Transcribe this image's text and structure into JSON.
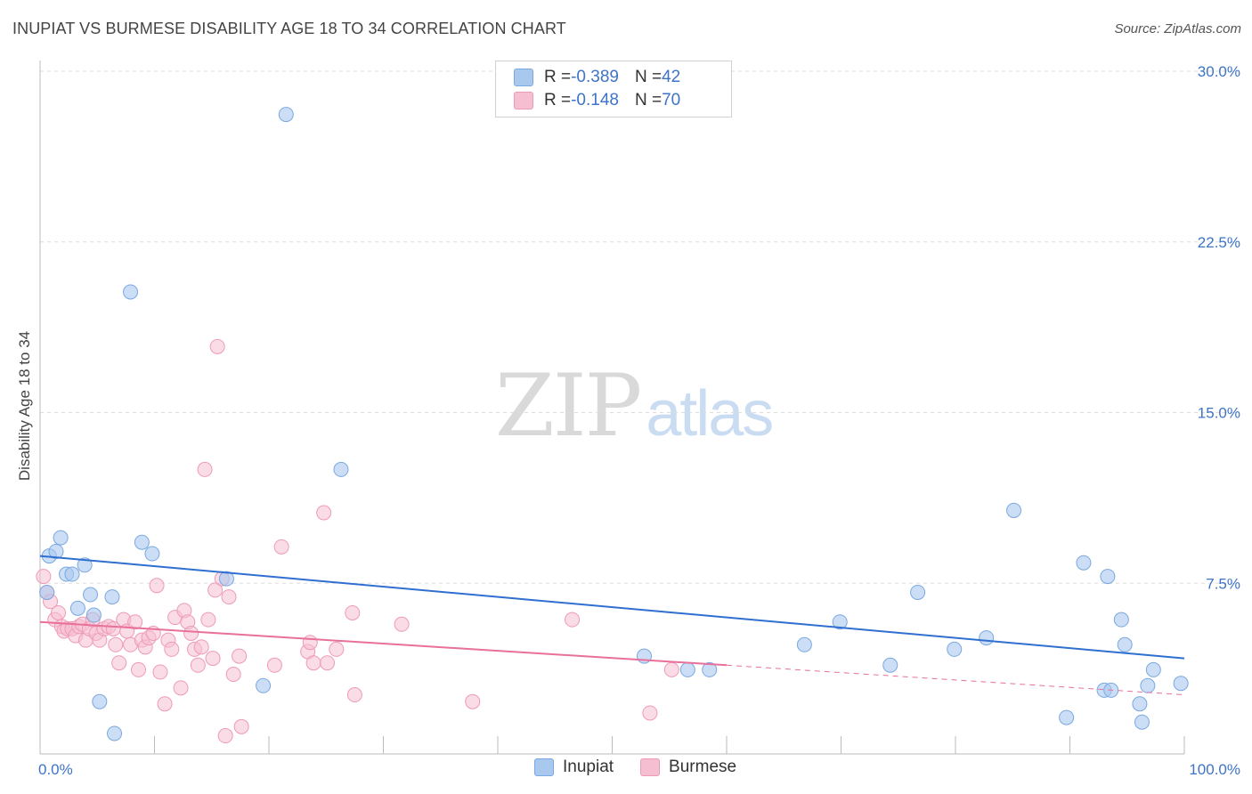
{
  "header": {
    "title": "INUPIAT VS BURMESE DISABILITY AGE 18 TO 34 CORRELATION CHART",
    "source": "Source: ZipAtlas.com"
  },
  "watermark": {
    "zip": "ZIP",
    "atlas": "atlas"
  },
  "legend": {
    "rows": [
      {
        "r_label": "R = ",
        "r_value": "-0.389",
        "n_label": "N = ",
        "n_value": "42"
      },
      {
        "r_label": "R = ",
        "r_value": "-0.148",
        "n_label": "N = ",
        "n_value": "70"
      }
    ]
  },
  "colors": {
    "inupiat_fill": "#a9c8ee",
    "inupiat_stroke": "#7aa8e0",
    "inupiat_line": "#2f6fd0",
    "burmese_fill": "#f6bfd1",
    "burmese_stroke": "#ee9ab6",
    "burmese_line": "#e8709a",
    "tick_text": "#3d74c8",
    "grid": "#dddddd"
  },
  "chart_data": {
    "type": "scatter",
    "title": "INUPIAT VS BURMESE DISABILITY AGE 18 TO 34 CORRELATION CHART",
    "xlabel": "",
    "ylabel": "Disability Age 18 to 34",
    "xlim": [
      0,
      100
    ],
    "ylim": [
      0,
      30
    ],
    "x_tick_labels": [
      "0.0%",
      "100.0%"
    ],
    "y_ticks": [
      7.5,
      15.0,
      22.5,
      30.0
    ],
    "y_tick_labels": [
      "7.5%",
      "15.0%",
      "22.5%",
      "30.0%"
    ],
    "grid": true,
    "legend_position": "top-center",
    "series": [
      {
        "name": "Inupiat",
        "r": -0.389,
        "n": 42,
        "trend": {
          "x0": 0,
          "y0": 8.7,
          "x1": 100,
          "y1": 4.2
        },
        "points": [
          [
            0.6,
            7.1
          ],
          [
            0.8,
            8.7
          ],
          [
            1.4,
            8.9
          ],
          [
            1.8,
            9.5
          ],
          [
            2.3,
            7.9
          ],
          [
            2.8,
            7.9
          ],
          [
            3.3,
            6.4
          ],
          [
            3.9,
            8.3
          ],
          [
            4.4,
            7.0
          ],
          [
            4.7,
            6.1
          ],
          [
            5.2,
            2.3
          ],
          [
            6.3,
            6.9
          ],
          [
            6.5,
            0.9
          ],
          [
            7.9,
            20.3
          ],
          [
            8.9,
            9.3
          ],
          [
            9.8,
            8.8
          ],
          [
            16.3,
            7.7
          ],
          [
            19.5,
            3.0
          ],
          [
            21.5,
            28.1
          ],
          [
            26.3,
            12.5
          ],
          [
            52.8,
            4.3
          ],
          [
            56.6,
            3.7
          ],
          [
            58.5,
            3.7
          ],
          [
            66.8,
            4.8
          ],
          [
            69.9,
            5.8
          ],
          [
            74.3,
            3.9
          ],
          [
            76.7,
            7.1
          ],
          [
            79.9,
            4.6
          ],
          [
            82.7,
            5.1
          ],
          [
            85.1,
            10.7
          ],
          [
            89.7,
            1.6
          ],
          [
            91.2,
            8.4
          ],
          [
            93.0,
            2.8
          ],
          [
            93.3,
            7.8
          ],
          [
            93.6,
            2.8
          ],
          [
            94.5,
            5.9
          ],
          [
            94.8,
            4.8
          ],
          [
            96.1,
            2.2
          ],
          [
            96.3,
            1.4
          ],
          [
            96.8,
            3.0
          ],
          [
            97.3,
            3.7
          ],
          [
            99.7,
            3.1
          ]
        ]
      },
      {
        "name": "Burmese",
        "r": -0.148,
        "n": 70,
        "trend_solid": {
          "x0": 0,
          "y0": 5.8,
          "x1": 60,
          "y1": 3.9
        },
        "trend_dashed": {
          "x0": 60,
          "y0": 3.9,
          "x1": 100,
          "y1": 2.6
        },
        "points": [
          [
            0.3,
            7.8
          ],
          [
            0.6,
            7.1
          ],
          [
            0.9,
            6.7
          ],
          [
            1.3,
            5.9
          ],
          [
            1.6,
            6.2
          ],
          [
            1.9,
            5.6
          ],
          [
            2.1,
            5.4
          ],
          [
            2.4,
            5.5
          ],
          [
            2.8,
            5.5
          ],
          [
            3.1,
            5.2
          ],
          [
            3.4,
            5.6
          ],
          [
            3.7,
            5.7
          ],
          [
            4.0,
            5.0
          ],
          [
            4.3,
            5.5
          ],
          [
            4.6,
            5.9
          ],
          [
            4.9,
            5.3
          ],
          [
            5.2,
            5.0
          ],
          [
            5.6,
            5.5
          ],
          [
            6.0,
            5.6
          ],
          [
            6.4,
            5.5
          ],
          [
            6.6,
            4.8
          ],
          [
            6.9,
            4.0
          ],
          [
            7.3,
            5.9
          ],
          [
            7.6,
            5.4
          ],
          [
            7.9,
            4.8
          ],
          [
            8.3,
            5.8
          ],
          [
            8.6,
            3.7
          ],
          [
            8.9,
            5.0
          ],
          [
            9.2,
            4.7
          ],
          [
            9.5,
            5.1
          ],
          [
            9.9,
            5.3
          ],
          [
            10.2,
            7.4
          ],
          [
            10.5,
            3.6
          ],
          [
            10.9,
            2.2
          ],
          [
            11.2,
            5.0
          ],
          [
            11.5,
            4.6
          ],
          [
            11.8,
            6.0
          ],
          [
            12.3,
            2.9
          ],
          [
            12.6,
            6.3
          ],
          [
            12.9,
            5.8
          ],
          [
            13.2,
            5.3
          ],
          [
            13.5,
            4.6
          ],
          [
            13.8,
            3.9
          ],
          [
            14.1,
            4.7
          ],
          [
            14.4,
            12.5
          ],
          [
            14.7,
            5.9
          ],
          [
            15.1,
            4.2
          ],
          [
            15.3,
            7.2
          ],
          [
            15.5,
            17.9
          ],
          [
            15.9,
            7.7
          ],
          [
            16.2,
            0.8
          ],
          [
            16.5,
            6.9
          ],
          [
            16.9,
            3.5
          ],
          [
            17.4,
            4.3
          ],
          [
            17.6,
            1.2
          ],
          [
            20.5,
            3.9
          ],
          [
            21.1,
            9.1
          ],
          [
            23.4,
            4.5
          ],
          [
            23.6,
            4.9
          ],
          [
            23.9,
            4.0
          ],
          [
            24.8,
            10.6
          ],
          [
            25.1,
            4.0
          ],
          [
            25.9,
            4.6
          ],
          [
            27.3,
            6.2
          ],
          [
            27.5,
            2.6
          ],
          [
            31.6,
            5.7
          ],
          [
            37.8,
            2.3
          ],
          [
            46.5,
            5.9
          ],
          [
            53.3,
            1.8
          ],
          [
            55.2,
            3.7
          ]
        ]
      }
    ]
  },
  "bottom_legend": {
    "items": [
      "Inupiat",
      "Burmese"
    ]
  }
}
